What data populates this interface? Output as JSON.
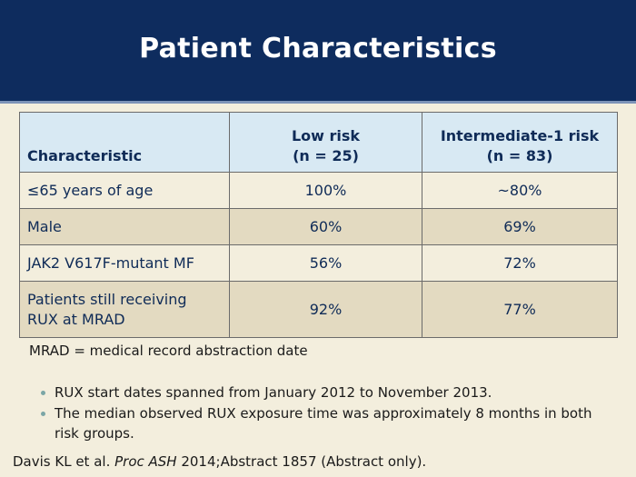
{
  "title": "Patient Characteristics",
  "table": {
    "headers": [
      {
        "line1": "",
        "line2": "Characteristic"
      },
      {
        "line1": "Low risk",
        "line2": "(n = 25)"
      },
      {
        "line1": "Intermediate-1 risk",
        "line2": "(n = 83)"
      }
    ],
    "rows": [
      {
        "characteristic": "≤65 years of age",
        "low_risk": "100%",
        "intermediate_risk": "~80%"
      },
      {
        "characteristic": "Male",
        "low_risk": "60%",
        "intermediate_risk": "69%"
      },
      {
        "characteristic": "JAK2 V617F-mutant MF",
        "low_risk": "56%",
        "intermediate_risk": "72%"
      },
      {
        "characteristic_line1": "Patients still receiving",
        "characteristic_line2": "RUX at MRAD",
        "low_risk": "92%",
        "intermediate_risk": "77%"
      }
    ]
  },
  "footnote": "MRAD = medical record abstraction date",
  "bullets": [
    "RUX start dates spanned from January 2012 to November 2013.",
    "The median observed RUX exposure time was approximately 8 months in both risk groups."
  ],
  "citation": {
    "authors": "Davis KL et al. ",
    "journal": "Proc ASH",
    "details": " 2014;Abstract 1857 (Abstract only)."
  },
  "colors": {
    "header_bg": "#0e2c5e",
    "table_header_bg": "#d8e9f3",
    "row_shade": "#e3dac1",
    "slide_bg": "#f3eedd",
    "table_text": "#0f2b57"
  }
}
